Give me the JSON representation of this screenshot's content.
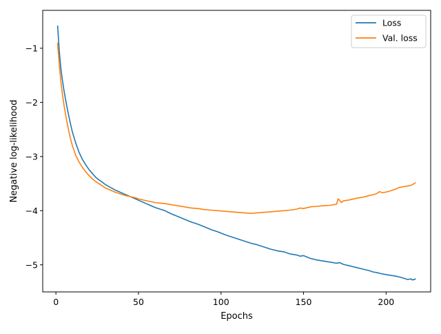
{
  "chart_data": {
    "type": "line",
    "title": "",
    "xlabel": "Epochs",
    "ylabel": "Negative log-likelihood",
    "xlim": [
      -8,
      227
    ],
    "ylim": [
      -5.5,
      -0.3
    ],
    "xticks": [
      0,
      50,
      100,
      150,
      200
    ],
    "yticks": [
      -5,
      -4,
      -3,
      -2,
      -1
    ],
    "xtick_labels": [
      "0",
      "50",
      "100",
      "150",
      "200"
    ],
    "ytick_labels": [
      "−5",
      "−4",
      "−3",
      "−2",
      "−1"
    ],
    "grid": false,
    "legend_position": "top-right",
    "series": [
      {
        "name": "Loss",
        "color": "#1f77b4",
        "x": [
          1,
          2,
          3,
          4,
          5,
          6,
          7,
          8,
          9,
          10,
          12,
          14,
          16,
          18,
          20,
          22,
          24,
          26,
          28,
          30,
          33,
          36,
          39,
          42,
          45,
          48,
          51,
          54,
          57,
          60,
          63,
          66,
          70,
          74,
          78,
          82,
          86,
          90,
          94,
          98,
          102,
          106,
          110,
          114,
          118,
          122,
          126,
          130,
          134,
          138,
          140,
          142,
          146,
          148,
          150,
          154,
          158,
          162,
          166,
          170,
          172,
          174,
          178,
          182,
          186,
          190,
          192,
          194,
          198,
          202,
          206,
          210,
          213,
          215,
          216,
          218
        ],
        "y": [
          -0.58,
          -1.05,
          -1.38,
          -1.6,
          -1.8,
          -1.97,
          -2.13,
          -2.28,
          -2.42,
          -2.55,
          -2.75,
          -2.92,
          -3.05,
          -3.15,
          -3.24,
          -3.31,
          -3.38,
          -3.43,
          -3.47,
          -3.52,
          -3.57,
          -3.62,
          -3.66,
          -3.7,
          -3.74,
          -3.78,
          -3.82,
          -3.86,
          -3.9,
          -3.94,
          -3.97,
          -4.0,
          -4.06,
          -4.11,
          -4.16,
          -4.21,
          -4.25,
          -4.3,
          -4.35,
          -4.39,
          -4.44,
          -4.48,
          -4.52,
          -4.56,
          -4.6,
          -4.63,
          -4.67,
          -4.71,
          -4.74,
          -4.76,
          -4.78,
          -4.8,
          -4.82,
          -4.84,
          -4.83,
          -4.88,
          -4.91,
          -4.93,
          -4.95,
          -4.97,
          -4.96,
          -4.99,
          -5.02,
          -5.05,
          -5.08,
          -5.11,
          -5.13,
          -5.14,
          -5.17,
          -5.19,
          -5.21,
          -5.24,
          -5.27,
          -5.26,
          -5.28,
          -5.26
        ]
      },
      {
        "name": "Val. loss",
        "color": "#ff7f0e",
        "x": [
          1,
          2,
          3,
          4,
          5,
          6,
          7,
          8,
          9,
          10,
          12,
          14,
          16,
          18,
          20,
          22,
          24,
          26,
          28,
          30,
          33,
          36,
          39,
          42,
          45,
          48,
          51,
          54,
          57,
          60,
          63,
          66,
          70,
          74,
          78,
          82,
          86,
          90,
          94,
          98,
          102,
          106,
          110,
          114,
          118,
          122,
          126,
          130,
          134,
          138,
          142,
          146,
          148,
          150,
          154,
          158,
          162,
          166,
          170,
          171,
          173,
          174,
          178,
          182,
          186,
          190,
          194,
          196,
          198,
          202,
          206,
          208,
          210,
          214,
          216,
          218
        ],
        "y": [
          -0.9,
          -1.3,
          -1.62,
          -1.86,
          -2.07,
          -2.25,
          -2.41,
          -2.56,
          -2.69,
          -2.8,
          -2.98,
          -3.1,
          -3.2,
          -3.28,
          -3.35,
          -3.41,
          -3.46,
          -3.5,
          -3.54,
          -3.58,
          -3.62,
          -3.66,
          -3.69,
          -3.72,
          -3.74,
          -3.76,
          -3.79,
          -3.81,
          -3.83,
          -3.85,
          -3.86,
          -3.87,
          -3.89,
          -3.91,
          -3.93,
          -3.95,
          -3.96,
          -3.98,
          -3.99,
          -4.0,
          -4.01,
          -4.02,
          -4.03,
          -4.04,
          -4.05,
          -4.04,
          -4.03,
          -4.02,
          -4.01,
          -4.0,
          -3.99,
          -3.97,
          -3.95,
          -3.96,
          -3.93,
          -3.92,
          -3.91,
          -3.9,
          -3.88,
          -3.78,
          -3.85,
          -3.82,
          -3.8,
          -3.77,
          -3.75,
          -3.72,
          -3.69,
          -3.65,
          -3.67,
          -3.64,
          -3.6,
          -3.57,
          -3.56,
          -3.54,
          -3.52,
          -3.48
        ]
      }
    ]
  }
}
